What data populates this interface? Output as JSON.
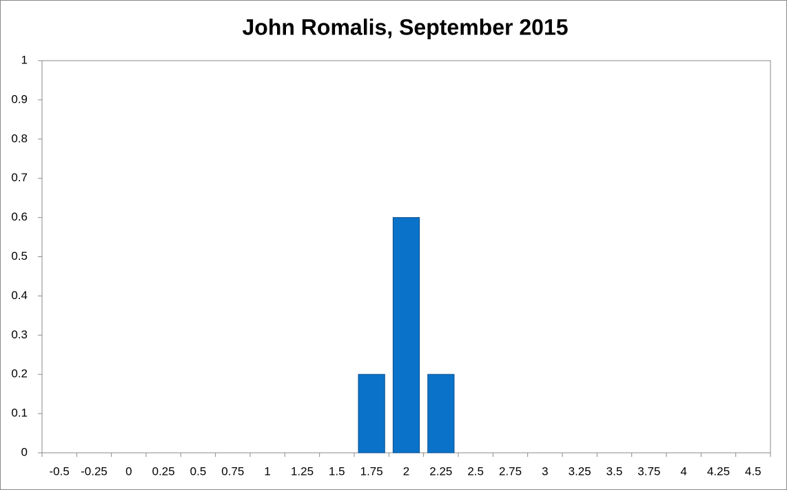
{
  "chart_data": {
    "type": "bar",
    "title": "John Romalis, September 2015",
    "categories": [
      "-0.5",
      "-0.25",
      "0",
      "0.25",
      "0.5",
      "0.75",
      "1",
      "1.25",
      "1.5",
      "1.75",
      "2",
      "2.25",
      "2.5",
      "2.75",
      "3",
      "3.25",
      "3.5",
      "3.75",
      "4",
      "4.25",
      "4.5"
    ],
    "values": [
      0,
      0,
      0,
      0,
      0,
      0,
      0,
      0,
      0,
      0.2,
      0.6,
      0.2,
      0,
      0,
      0,
      0,
      0,
      0,
      0,
      0,
      0
    ],
    "color": "#0a72c8",
    "ylim": [
      0,
      1
    ],
    "yticks": [
      0,
      0.1,
      0.2,
      0.3,
      0.4,
      0.5,
      0.6,
      0.7,
      0.8,
      0.9,
      1
    ],
    "grid": false
  }
}
